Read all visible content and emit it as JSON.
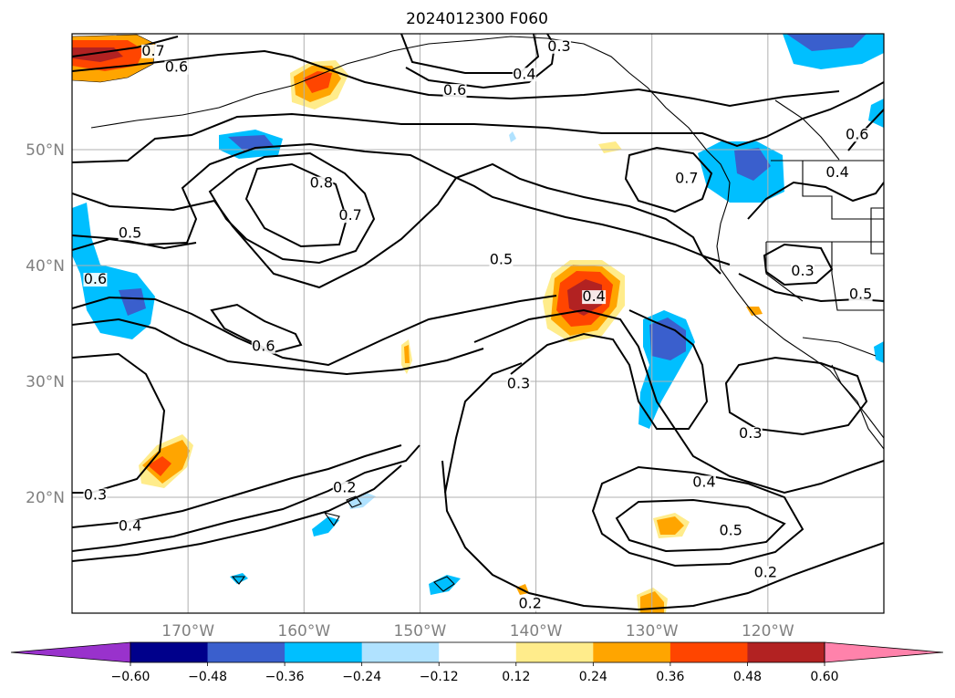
{
  "title": "2024012300 F060",
  "map": {
    "lat_labels": [
      "50°N",
      "40°N",
      "30°N",
      "20°N"
    ],
    "lon_labels": [
      "170°W",
      "160°W",
      "150°W",
      "140°W",
      "130°W",
      "120°W"
    ],
    "lat_values": [
      50,
      40,
      30,
      20
    ],
    "lon_values": [
      -170,
      -160,
      -150,
      -140,
      -130,
      -120
    ],
    "extent": {
      "lon_min": -180,
      "lon_max": -110,
      "lat_min": 10,
      "lat_max": 60
    },
    "grid": true,
    "contour_labels": [
      {
        "text": "0.7",
        "lon": -173,
        "lat": 58.2
      },
      {
        "text": "0.6",
        "lon": -171,
        "lat": 56.8
      },
      {
        "text": "0.3",
        "lon": -138,
        "lat": 58.6
      },
      {
        "text": "0.4",
        "lon": -141,
        "lat": 56.2
      },
      {
        "text": "0.6",
        "lon": -147,
        "lat": 54.8
      },
      {
        "text": "0.8",
        "lon": -158.5,
        "lat": 46.8
      },
      {
        "text": "0.7",
        "lon": -156,
        "lat": 44.0
      },
      {
        "text": "0.5",
        "lon": -175,
        "lat": 42.5
      },
      {
        "text": "0.6",
        "lon": -178,
        "lat": 38.5
      },
      {
        "text": "0.5",
        "lon": -143,
        "lat": 40.2
      },
      {
        "text": "0.4",
        "lon": -135,
        "lat": 37.0
      },
      {
        "text": "0.6",
        "lon": -163.5,
        "lat": 32.7
      },
      {
        "text": "0.3",
        "lon": -141.5,
        "lat": 29.5
      },
      {
        "text": "0.7",
        "lon": -127,
        "lat": 47.2
      },
      {
        "text": "0.4",
        "lon": -114,
        "lat": 47.7
      },
      {
        "text": "0.6",
        "lon": -112.3,
        "lat": 51.0
      },
      {
        "text": "0.3",
        "lon": -117,
        "lat": 39.2
      },
      {
        "text": "0.5",
        "lon": -112,
        "lat": 37.2
      },
      {
        "text": "0.3",
        "lon": -178,
        "lat": 19.9
      },
      {
        "text": "0.4",
        "lon": -175,
        "lat": 17.2
      },
      {
        "text": "0.2",
        "lon": -156.5,
        "lat": 20.5
      },
      {
        "text": "0.3",
        "lon": -121.5,
        "lat": 25.2
      },
      {
        "text": "0.4",
        "lon": -125.5,
        "lat": 21.0
      },
      {
        "text": "0.5",
        "lon": -123.2,
        "lat": 16.8
      },
      {
        "text": "0.2",
        "lon": -120.2,
        "lat": 13.2
      },
      {
        "text": "0.2",
        "lon": -140.5,
        "lat": 10.5
      }
    ]
  },
  "colorbar": {
    "tick_labels": [
      "−0.60",
      "−0.48",
      "−0.36",
      "−0.24",
      "−0.12",
      "0.12",
      "0.24",
      "0.36",
      "0.48",
      "0.60"
    ],
    "boundaries": [
      -0.6,
      -0.48,
      -0.36,
      -0.24,
      -0.12,
      0.12,
      0.24,
      0.36,
      0.48,
      0.6
    ],
    "colors": [
      "#9932cc",
      "#00008b",
      "#3a5fcd",
      "#00bfff",
      "#b0e2ff",
      "#ffffff",
      "#ffec8b",
      "#ffa500",
      "#ff4500",
      "#b22222",
      "#ff82ab"
    ]
  },
  "colors": {
    "gray_label": "#808080",
    "grid": "#b0b0b0",
    "contour": "#000000"
  }
}
